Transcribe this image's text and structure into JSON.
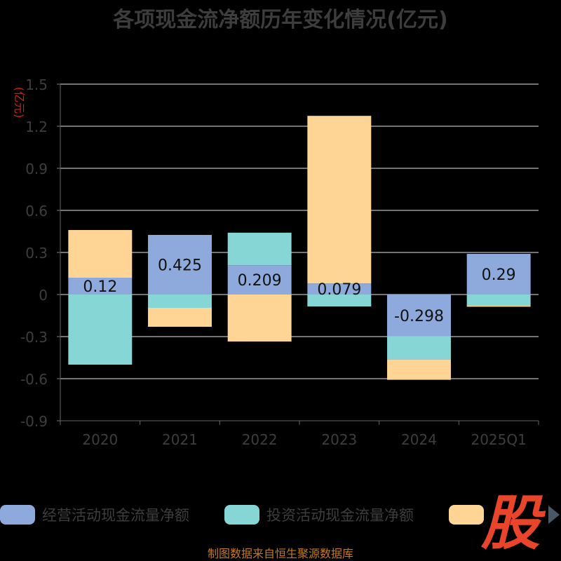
{
  "chart_data": {
    "type": "bar",
    "stacked": true,
    "title": "各项现金流净额历年变化情况(亿元)",
    "ylabel": "(亿元)",
    "categories": [
      "2020",
      "2021",
      "2022",
      "2023",
      "2024",
      "2025Q1"
    ],
    "yticks": [
      "1.5",
      "1.2",
      "0.9",
      "0.6",
      "0.3",
      "0",
      "-0.3",
      "-0.6",
      "-0.9"
    ],
    "ylim": [
      -0.9,
      1.5
    ],
    "grid": true,
    "legend_position": "bottom",
    "series": [
      {
        "name": "经营活动现金流量净额",
        "color": "#8eaadc",
        "values": [
          0.12,
          0.425,
          0.209,
          0.079,
          -0.298,
          0.29
        ],
        "labels": [
          "0.12",
          "0.425",
          "0.209",
          "0.079",
          "-0.298",
          "0.29"
        ]
      },
      {
        "name": "投资活动现金流量净额",
        "color": "#86d6d6",
        "values": [
          -0.5,
          -0.095,
          0.232,
          -0.085,
          -0.165,
          -0.08
        ]
      },
      {
        "name": "",
        "color": "#ffd596",
        "values": [
          0.34,
          -0.135,
          -0.335,
          1.195,
          -0.145,
          -0.007
        ]
      }
    ]
  },
  "source": "制图数据来自恒生聚源数据库",
  "watermark_text": "股"
}
